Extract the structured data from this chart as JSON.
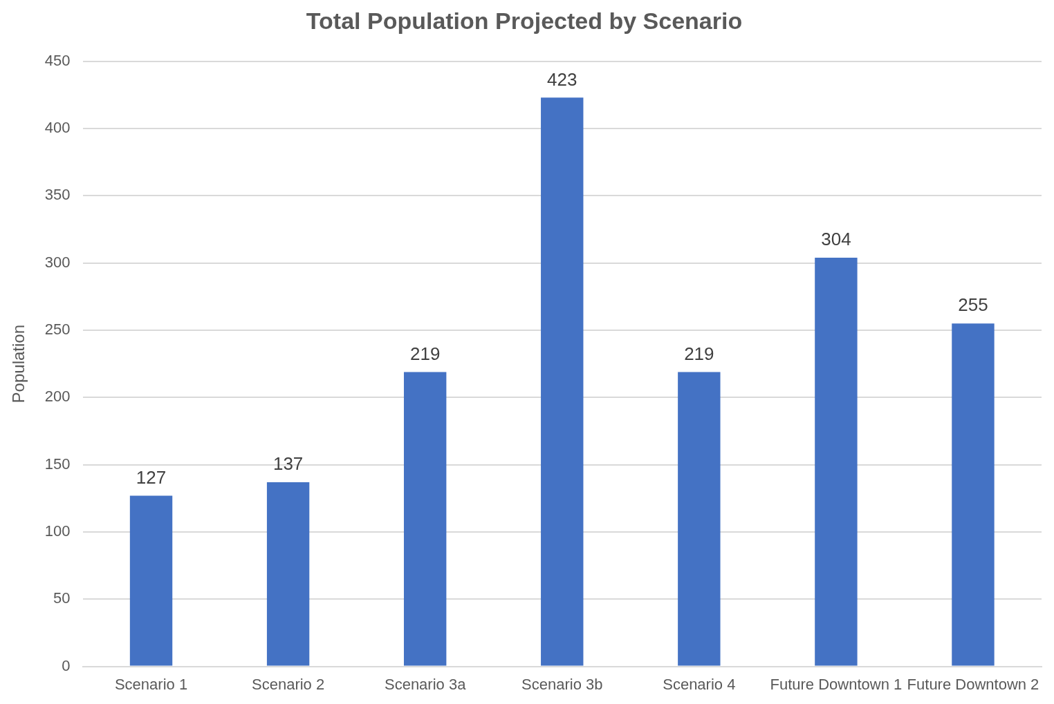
{
  "chart_data": {
    "type": "bar",
    "title": "Total Population Projected by Scenario",
    "ylabel": "Population",
    "categories": [
      "Scenario 1",
      "Scenario 2",
      "Scenario 3a",
      "Scenario 3b",
      "Scenario 4",
      "Future Downtown 1",
      "Future Downtown 2"
    ],
    "values": [
      127,
      137,
      219,
      423,
      219,
      304,
      255
    ],
    "color": "#4472c4",
    "ylim": [
      0,
      450
    ],
    "yticks": [
      0,
      50,
      100,
      150,
      200,
      250,
      300,
      350,
      400,
      450
    ],
    "grid": "y",
    "data_labels": true,
    "legend": false
  }
}
